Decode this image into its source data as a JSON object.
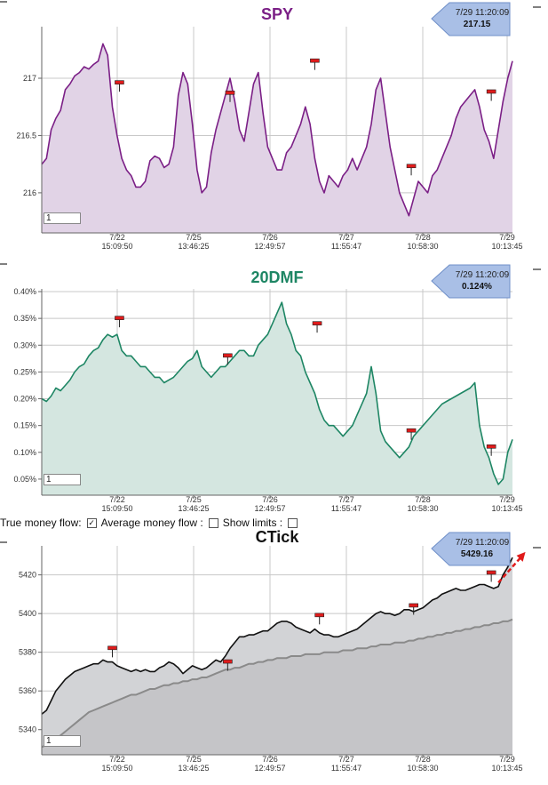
{
  "controls": {
    "true_money_flow_label": "True money flow:",
    "true_money_flow_checked": true,
    "average_money_flow_label": "Average money flow :",
    "average_money_flow_checked": false,
    "show_limits_label": "Show limits :",
    "show_limits_checked": false
  },
  "x_ticks": [
    {
      "date": "7/22",
      "time": "15:09:50"
    },
    {
      "date": "7/25",
      "time": "13:46:25"
    },
    {
      "date": "7/26",
      "time": "12:49:57"
    },
    {
      "date": "7/27",
      "time": "11:55:47"
    },
    {
      "date": "7/28",
      "time": "10:58:30"
    },
    {
      "date": "7/29",
      "time": "10:13:45"
    }
  ],
  "chart_data": [
    {
      "type": "area",
      "title": "SPY",
      "color": "#7b1f86",
      "fill": "#e1d3e6",
      "ylim": [
        215.65,
        217.45
      ],
      "yticks": [
        216,
        216.5,
        217
      ],
      "ytick_labels": [
        "216",
        "216.5",
        "217"
      ],
      "input_value": "1",
      "callout": {
        "timestamp": "7/29 11:20:09",
        "value": "217.15"
      },
      "x": [
        0,
        0.01,
        0.02,
        0.03,
        0.04,
        0.05,
        0.06,
        0.07,
        0.08,
        0.09,
        0.1,
        0.11,
        0.12,
        0.13,
        0.14,
        0.15,
        0.16,
        0.17,
        0.18,
        0.19,
        0.2,
        0.21,
        0.22,
        0.23,
        0.24,
        0.25,
        0.26,
        0.27,
        0.28,
        0.29,
        0.3,
        0.31,
        0.32,
        0.33,
        0.34,
        0.35,
        0.36,
        0.37,
        0.38,
        0.39,
        0.4,
        0.41,
        0.42,
        0.43,
        0.44,
        0.45,
        0.46,
        0.47,
        0.48,
        0.49,
        0.5,
        0.51,
        0.52,
        0.53,
        0.54,
        0.55,
        0.56,
        0.57,
        0.58,
        0.59,
        0.6,
        0.61,
        0.62,
        0.63,
        0.64,
        0.65,
        0.66,
        0.67,
        0.68,
        0.69,
        0.7,
        0.71,
        0.72,
        0.73,
        0.74,
        0.75,
        0.76,
        0.77,
        0.78,
        0.79,
        0.8,
        0.81,
        0.82,
        0.83,
        0.84,
        0.85,
        0.86,
        0.87,
        0.88,
        0.89,
        0.9,
        0.91,
        0.92,
        0.93,
        0.94,
        0.95,
        0.96,
        0.97,
        0.98,
        0.99,
        1
      ],
      "values": [
        216.25,
        216.3,
        216.55,
        216.65,
        216.72,
        216.9,
        216.95,
        217.02,
        217.05,
        217.1,
        217.08,
        217.12,
        217.15,
        217.3,
        217.2,
        216.75,
        216.5,
        216.3,
        216.2,
        216.15,
        216.05,
        216.05,
        216.1,
        216.28,
        216.32,
        216.3,
        216.22,
        216.25,
        216.4,
        216.85,
        217.05,
        216.95,
        216.6,
        216.2,
        216.0,
        216.05,
        216.35,
        216.55,
        216.7,
        216.85,
        217.0,
        216.8,
        216.55,
        216.45,
        216.7,
        216.95,
        217.05,
        216.7,
        216.4,
        216.3,
        216.2,
        216.2,
        216.35,
        216.4,
        216.5,
        216.6,
        216.75,
        216.6,
        216.3,
        216.1,
        216.0,
        216.15,
        216.1,
        216.05,
        216.15,
        216.2,
        216.3,
        216.2,
        216.3,
        216.4,
        216.6,
        216.9,
        217.0,
        216.7,
        216.4,
        216.2,
        216.0,
        215.9,
        215.8,
        215.95,
        216.1,
        216.05,
        216.0,
        216.15,
        216.2,
        216.3,
        216.4,
        216.5,
        216.65,
        216.75,
        216.8,
        216.85,
        216.9,
        216.75,
        216.55,
        216.45,
        216.3,
        216.55,
        216.8,
        217.0,
        217.15
      ],
      "markers": [
        {
          "x": 0.165,
          "y": 216.96
        },
        {
          "x": 0.4,
          "y": 216.87
        },
        {
          "x": 0.58,
          "y": 217.15
        },
        {
          "x": 0.785,
          "y": 216.23
        },
        {
          "x": 0.955,
          "y": 216.88
        }
      ]
    },
    {
      "type": "area",
      "title": "20DMF",
      "color": "#1e8664",
      "fill": "#d4e6e0",
      "ylim": [
        0.0002,
        0.00405
      ],
      "yticks": [
        0.0005,
        0.001,
        0.0015,
        0.002,
        0.0025,
        0.003,
        0.0035,
        0.004
      ],
      "ytick_labels": [
        "0.05%",
        "0.10%",
        "0.15%",
        "0.20%",
        "0.25%",
        "0.30%",
        "0.35%",
        "0.40%"
      ],
      "input_value": "1",
      "callout": {
        "timestamp": "7/29 11:20:09",
        "value": "0.124%"
      },
      "x": [
        0,
        0.01,
        0.02,
        0.03,
        0.04,
        0.05,
        0.06,
        0.07,
        0.08,
        0.09,
        0.1,
        0.11,
        0.12,
        0.13,
        0.14,
        0.15,
        0.16,
        0.17,
        0.18,
        0.19,
        0.2,
        0.21,
        0.22,
        0.23,
        0.24,
        0.25,
        0.26,
        0.27,
        0.28,
        0.29,
        0.3,
        0.31,
        0.32,
        0.33,
        0.34,
        0.35,
        0.36,
        0.37,
        0.38,
        0.39,
        0.4,
        0.41,
        0.42,
        0.43,
        0.44,
        0.45,
        0.46,
        0.47,
        0.48,
        0.49,
        0.5,
        0.51,
        0.52,
        0.53,
        0.54,
        0.55,
        0.56,
        0.57,
        0.58,
        0.59,
        0.6,
        0.61,
        0.62,
        0.63,
        0.64,
        0.65,
        0.66,
        0.67,
        0.68,
        0.69,
        0.7,
        0.71,
        0.72,
        0.73,
        0.74,
        0.75,
        0.76,
        0.77,
        0.78,
        0.79,
        0.8,
        0.81,
        0.82,
        0.83,
        0.84,
        0.85,
        0.86,
        0.87,
        0.88,
        0.89,
        0.9,
        0.91,
        0.92,
        0.93,
        0.94,
        0.95,
        0.96,
        0.97,
        0.98,
        0.99,
        1
      ],
      "values": [
        0.002,
        0.00195,
        0.00205,
        0.0022,
        0.00215,
        0.00225,
        0.00235,
        0.0025,
        0.0026,
        0.00265,
        0.0028,
        0.0029,
        0.00295,
        0.0031,
        0.0032,
        0.00315,
        0.0032,
        0.0029,
        0.0028,
        0.0028,
        0.0027,
        0.0026,
        0.0026,
        0.0025,
        0.0024,
        0.0024,
        0.0023,
        0.00235,
        0.0024,
        0.0025,
        0.0026,
        0.0027,
        0.00275,
        0.0029,
        0.0026,
        0.0025,
        0.0024,
        0.0025,
        0.0026,
        0.0026,
        0.0027,
        0.0028,
        0.0029,
        0.0029,
        0.0028,
        0.0028,
        0.003,
        0.0031,
        0.0032,
        0.0034,
        0.0036,
        0.0038,
        0.0034,
        0.0032,
        0.0029,
        0.0028,
        0.0025,
        0.0023,
        0.0021,
        0.0018,
        0.0016,
        0.0015,
        0.0015,
        0.0014,
        0.0013,
        0.0014,
        0.0015,
        0.0017,
        0.0019,
        0.0021,
        0.0026,
        0.0021,
        0.0014,
        0.0012,
        0.0011,
        0.001,
        0.0009,
        0.001,
        0.0011,
        0.0013,
        0.0014,
        0.0015,
        0.0016,
        0.0017,
        0.0018,
        0.0019,
        0.00195,
        0.002,
        0.00205,
        0.0021,
        0.00215,
        0.0022,
        0.0023,
        0.0015,
        0.0011,
        0.0009,
        0.0006,
        0.0004,
        0.0005,
        0.001,
        0.00124
      ],
      "markers": [
        {
          "x": 0.165,
          "y": 0.0035
        },
        {
          "x": 0.395,
          "y": 0.0028
        },
        {
          "x": 0.585,
          "y": 0.0034
        },
        {
          "x": 0.785,
          "y": 0.0014
        },
        {
          "x": 0.955,
          "y": 0.0011
        }
      ]
    },
    {
      "type": "area",
      "title": "CTick",
      "color": "#111111",
      "fill": "#d2d3d6",
      "ylim": [
        5327,
        5435
      ],
      "yticks": [
        5340,
        5360,
        5380,
        5400,
        5420
      ],
      "ytick_labels": [
        "5340",
        "5360",
        "5380",
        "5400",
        "5420"
      ],
      "input_value": "1",
      "callout": {
        "timestamp": "7/29 11:20:09",
        "value": "5429.16"
      },
      "x": [
        0,
        0.01,
        0.02,
        0.03,
        0.04,
        0.05,
        0.06,
        0.07,
        0.08,
        0.09,
        0.1,
        0.11,
        0.12,
        0.13,
        0.14,
        0.15,
        0.16,
        0.17,
        0.18,
        0.19,
        0.2,
        0.21,
        0.22,
        0.23,
        0.24,
        0.25,
        0.26,
        0.27,
        0.28,
        0.29,
        0.3,
        0.31,
        0.32,
        0.33,
        0.34,
        0.35,
        0.36,
        0.37,
        0.38,
        0.39,
        0.4,
        0.41,
        0.42,
        0.43,
        0.44,
        0.45,
        0.46,
        0.47,
        0.48,
        0.49,
        0.5,
        0.51,
        0.52,
        0.53,
        0.54,
        0.55,
        0.56,
        0.57,
        0.58,
        0.59,
        0.6,
        0.61,
        0.62,
        0.63,
        0.64,
        0.65,
        0.66,
        0.67,
        0.68,
        0.69,
        0.7,
        0.71,
        0.72,
        0.73,
        0.74,
        0.75,
        0.76,
        0.77,
        0.78,
        0.79,
        0.8,
        0.81,
        0.82,
        0.83,
        0.84,
        0.85,
        0.86,
        0.87,
        0.88,
        0.89,
        0.9,
        0.91,
        0.92,
        0.93,
        0.94,
        0.95,
        0.96,
        0.97,
        0.98,
        0.99,
        1
      ],
      "values": [
        5348,
        5350,
        5355,
        5360,
        5363,
        5366,
        5368,
        5370,
        5371,
        5372,
        5373,
        5374,
        5374,
        5376,
        5375,
        5375,
        5373,
        5372,
        5371,
        5370,
        5371,
        5370,
        5371,
        5370,
        5370,
        5372,
        5373,
        5375,
        5374,
        5372,
        5369,
        5371,
        5373,
        5372,
        5371,
        5372,
        5374,
        5376,
        5375,
        5378,
        5382,
        5385,
        5388,
        5388,
        5389,
        5389,
        5390,
        5391,
        5391,
        5393,
        5395,
        5396,
        5396,
        5395,
        5393,
        5392,
        5391,
        5390,
        5392,
        5390,
        5389,
        5389,
        5388,
        5388,
        5389,
        5390,
        5391,
        5392,
        5394,
        5396,
        5398,
        5400,
        5401,
        5400,
        5400,
        5399,
        5400,
        5402,
        5402,
        5401,
        5402,
        5403,
        5405,
        5407,
        5408,
        5410,
        5411,
        5412,
        5413,
        5412,
        5412,
        5413,
        5414,
        5415,
        5415,
        5414,
        5413,
        5414,
        5420,
        5424,
        5429
      ],
      "avg": [
        5331,
        5332,
        5333,
        5335,
        5337,
        5339,
        5341,
        5343,
        5345,
        5347,
        5349,
        5350,
        5351,
        5352,
        5353,
        5354,
        5355,
        5356,
        5357,
        5358,
        5358,
        5359,
        5360,
        5361,
        5361,
        5362,
        5363,
        5363,
        5364,
        5364,
        5365,
        5365,
        5366,
        5366,
        5367,
        5367,
        5368,
        5369,
        5370,
        5371,
        5371,
        5372,
        5372,
        5373,
        5374,
        5374,
        5375,
        5375,
        5376,
        5376,
        5377,
        5377,
        5377,
        5378,
        5378,
        5378,
        5379,
        5379,
        5379,
        5379,
        5380,
        5380,
        5380,
        5380,
        5381,
        5381,
        5381,
        5382,
        5382,
        5382,
        5383,
        5383,
        5384,
        5384,
        5384,
        5385,
        5385,
        5385,
        5386,
        5386,
        5387,
        5387,
        5388,
        5388,
        5389,
        5389,
        5390,
        5390,
        5391,
        5391,
        5392,
        5392,
        5393,
        5393,
        5394,
        5394,
        5395,
        5395,
        5396,
        5396,
        5397
      ],
      "markers": [
        {
          "x": 0.15,
          "y": 5382
        },
        {
          "x": 0.395,
          "y": 5375
        },
        {
          "x": 0.59,
          "y": 5399
        },
        {
          "x": 0.79,
          "y": 5404
        },
        {
          "x": 0.955,
          "y": 5421
        }
      ],
      "trend_arrow": true
    }
  ]
}
